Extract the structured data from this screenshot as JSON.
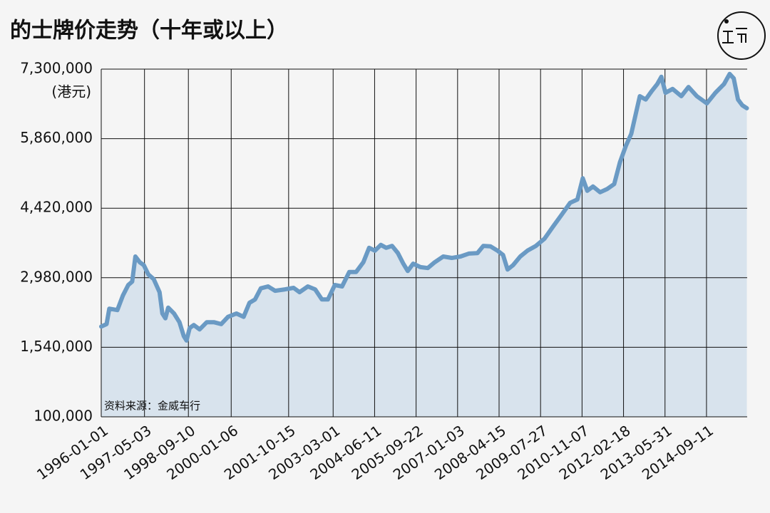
{
  "chart_data": {
    "type": "line",
    "title": "的士牌价走势（十年或以上）",
    "y_label": "(港元)",
    "source": "资料来源：金威车行",
    "x": [
      "1996-01-01",
      "1996-03-01",
      "1996-04-01",
      "1996-07-01",
      "1996-09-01",
      "1996-11-01",
      "1996-12-15",
      "1997-01-20",
      "1997-03-10",
      "1997-04-25",
      "1997-06-15",
      "1997-08-15",
      "1997-10-20",
      "1997-11-20",
      "1997-12-25",
      "1998-01-25",
      "1998-04-01",
      "1998-06-01",
      "1998-07-20",
      "1998-08-20",
      "1998-09-25",
      "1998-11-10",
      "1999-01-15",
      "1999-04-05",
      "1999-06-25",
      "1999-09-15",
      "1999-12-01",
      "2000-03-05",
      "2000-05-25",
      "2000-07-30",
      "2000-10-01",
      "2000-12-05",
      "2001-02-25",
      "2001-05-15",
      "2001-09-05",
      "2001-12-10",
      "2002-02-15",
      "2002-05-20",
      "2002-08-10",
      "2002-10-25",
      "2003-01-01",
      "2003-03-20",
      "2003-06-10",
      "2003-08-30",
      "2003-11-15",
      "2004-02-05",
      "2004-04-10",
      "2004-06-15",
      "2004-08-20",
      "2004-10-20",
      "2004-12-25",
      "2005-03-01",
      "2005-05-01",
      "2005-06-20",
      "2005-08-20",
      "2005-11-10",
      "2006-02-01",
      "2006-04-20",
      "2006-07-25",
      "2006-10-30",
      "2007-02-05",
      "2007-05-10",
      "2007-08-15",
      "2007-10-20",
      "2008-01-08",
      "2008-03-28",
      "2008-05-30",
      "2008-07-20",
      "2008-09-20",
      "2008-12-10",
      "2009-03-01",
      "2009-06-05",
      "2009-09-10",
      "2009-12-15",
      "2010-03-20",
      "2010-06-25",
      "2010-09-15",
      "2010-11-15",
      "2011-01-05",
      "2011-03-10",
      "2011-05-30",
      "2011-08-20",
      "2011-11-05",
      "2012-01-08",
      "2012-03-15",
      "2012-05-15",
      "2012-07-05",
      "2012-08-20",
      "2012-10-25",
      "2012-12-30",
      "2013-03-05",
      "2013-04-20",
      "2013-06-05",
      "2013-08-25",
      "2013-12-01",
      "2014-02-20",
      "2014-05-25",
      "2014-09-15",
      "2014-12-20",
      "2015-03-28",
      "2015-05-30",
      "2015-07-15",
      "2015-09-01",
      "2015-10-20",
      "2015-12-10"
    ],
    "values": [
      1970000,
      2020000,
      2340000,
      2310000,
      2610000,
      2830000,
      2900000,
      3420000,
      3300000,
      3240000,
      3050000,
      2950000,
      2680000,
      2240000,
      2140000,
      2360000,
      2240000,
      2060000,
      1770000,
      1680000,
      1940000,
      2000000,
      1910000,
      2060000,
      2060000,
      2020000,
      2170000,
      2240000,
      2170000,
      2460000,
      2530000,
      2760000,
      2800000,
      2710000,
      2740000,
      2770000,
      2680000,
      2800000,
      2740000,
      2530000,
      2530000,
      2830000,
      2800000,
      3100000,
      3100000,
      3300000,
      3600000,
      3540000,
      3660000,
      3600000,
      3640000,
      3490000,
      3270000,
      3120000,
      3270000,
      3200000,
      3180000,
      3300000,
      3420000,
      3390000,
      3420000,
      3480000,
      3490000,
      3640000,
      3630000,
      3540000,
      3450000,
      3150000,
      3240000,
      3420000,
      3540000,
      3640000,
      3790000,
      4040000,
      4280000,
      4530000,
      4600000,
      5040000,
      4780000,
      4870000,
      4750000,
      4820000,
      4920000,
      5370000,
      5710000,
      5960000,
      6370000,
      6740000,
      6670000,
      6840000,
      6990000,
      7140000,
      6810000,
      6890000,
      6740000,
      6930000,
      6740000,
      6590000,
      6810000,
      6990000,
      7200000,
      7110000,
      6670000,
      6550000,
      6490000
    ],
    "color": "#6a9ac4",
    "area_color": "#d8e3ed",
    "xlim": [
      "1996-01-01",
      "2015-12-14"
    ],
    "xticks": [
      "1996-01-01",
      "1997-05-03",
      "1998-09-10",
      "2000-01-06",
      "2001-10-15",
      "2003-03-01",
      "2004-06-11",
      "2005-09-22",
      "2007-01-03",
      "2008-04-15",
      "2009-07-27",
      "2010-11-07",
      "2012-02-18",
      "2013-05-31",
      "2014-09-11"
    ],
    "ylim": [
      100000,
      7300000
    ],
    "yticks": [
      {
        "value": 100000,
        "label": "100,000"
      },
      {
        "value": 1540000,
        "label": "1,540,000"
      },
      {
        "value": 2980000,
        "label": "2,980,000"
      },
      {
        "value": 4420000,
        "label": "4,420,000"
      },
      {
        "value": 5860000,
        "label": "5,860,000"
      },
      {
        "value": 7300000,
        "label": "7,300,000"
      }
    ],
    "grid": true
  }
}
